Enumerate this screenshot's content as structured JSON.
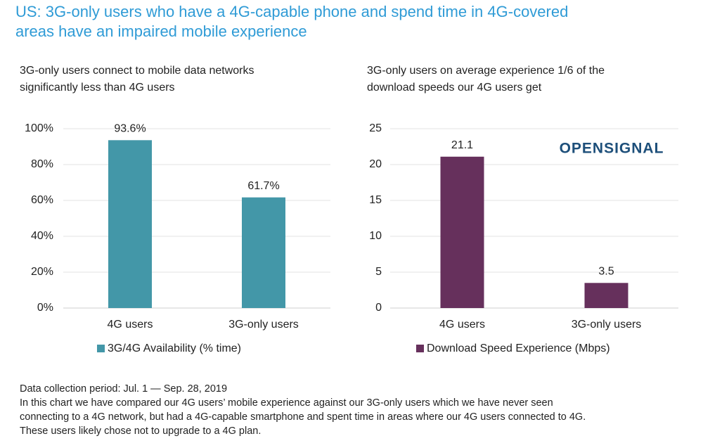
{
  "title": [
    "US: 3G-only users who have a 4G-capable phone and spend time in 4G-covered",
    "areas have an impaired mobile experience"
  ],
  "logo": "OPENSIGNAL",
  "chart_data": [
    {
      "type": "bar",
      "title": [
        "3G-only users connect to mobile data networks",
        "significantly less than 4G users"
      ],
      "categories": [
        "4G users",
        "3G-only users"
      ],
      "series": [
        {
          "name": "3G/4G Availability (% time)",
          "color": "#4397a8",
          "values": [
            93.6,
            61.7
          ],
          "value_labels": [
            "93.6%",
            "61.7%"
          ]
        }
      ],
      "ylim": [
        0,
        100
      ],
      "yticks": [
        {
          "value": 0,
          "label": "0%"
        },
        {
          "value": 20,
          "label": "20%"
        },
        {
          "value": 40,
          "label": "40%"
        },
        {
          "value": 60,
          "label": "60%"
        },
        {
          "value": 80,
          "label": "80%"
        },
        {
          "value": 100,
          "label": "100%"
        }
      ],
      "grid": true
    },
    {
      "type": "bar",
      "title": [
        "3G-only users on average experience 1/6 of the",
        "download speeds our 4G users get"
      ],
      "categories": [
        "4G users",
        "3G-only users"
      ],
      "series": [
        {
          "name": "Download Speed Experience (Mbps)",
          "color": "#66305c",
          "values": [
            21.1,
            3.5
          ]
        }
      ],
      "ylim": [
        0,
        25
      ],
      "yticks": [
        0,
        5,
        10,
        15,
        20,
        25
      ],
      "grid": true
    }
  ],
  "footnote": [
    "Data collection period: Jul. 1 — Sep. 28, 2019",
    "In this chart we have compared our 4G users’ mobile experience against our 3G-only users which we have never seen",
    "connecting to a 4G network, but had a 4G-capable smartphone and spent time in areas where our 4G users connected to 4G.",
    "These users likely chose not to upgrade to a 4G plan."
  ]
}
